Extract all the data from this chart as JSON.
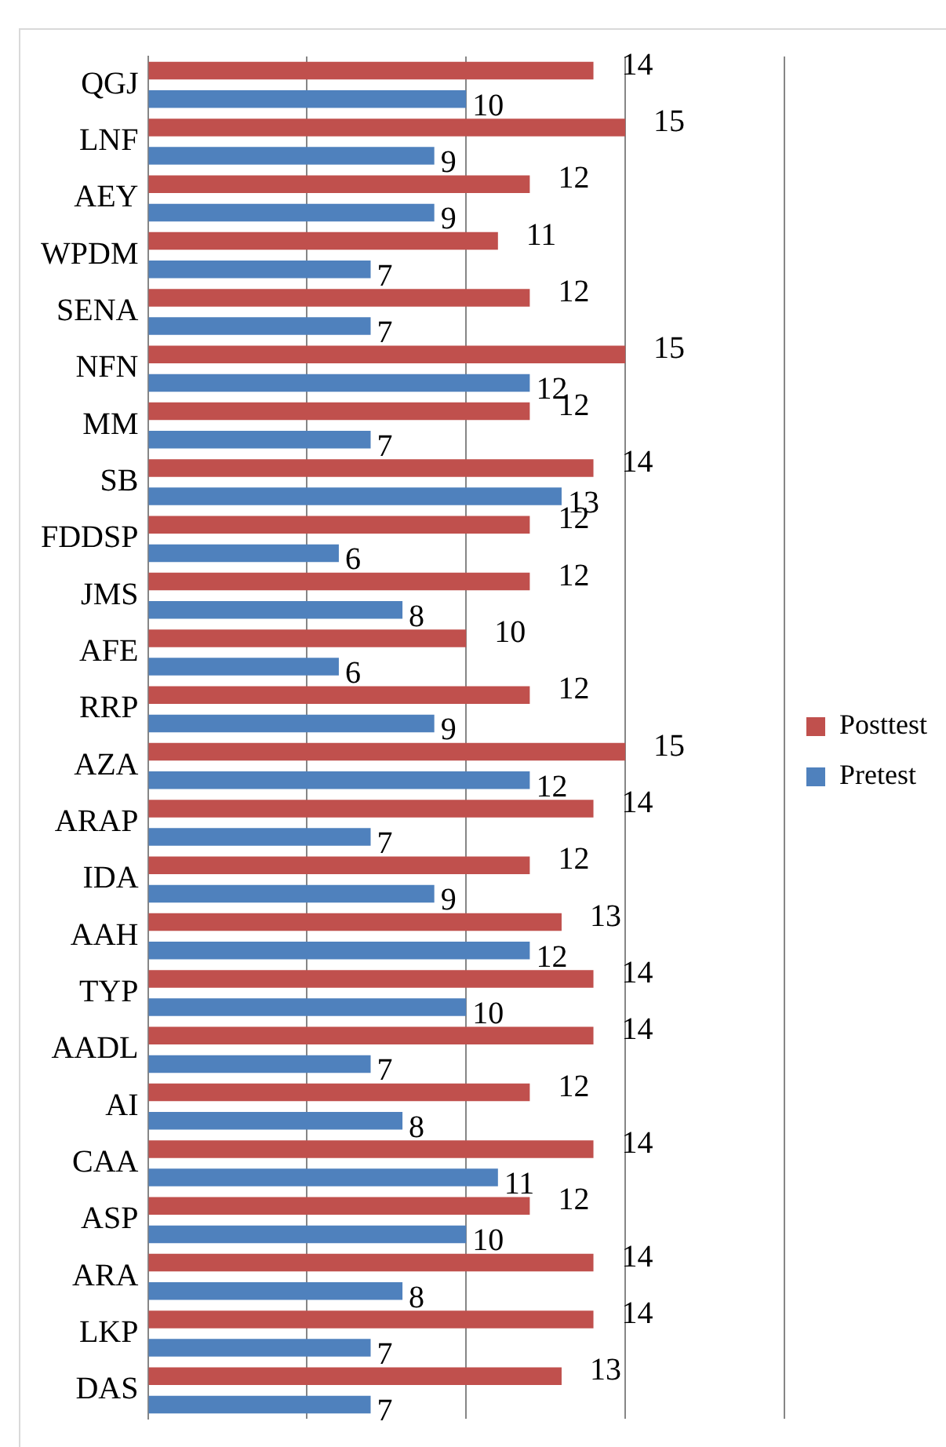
{
  "chart_data": {
    "type": "bar",
    "orientation": "horizontal",
    "categories": [
      "QGJ",
      "LNF",
      "AEY",
      "WPDM",
      "SENA",
      "NFN",
      "MM",
      "SB",
      "FDDSP",
      "JMS",
      "AFE",
      "RRP",
      "AZA",
      "ARAP",
      "IDA",
      "AAH",
      "TYP",
      "AADL",
      "AI",
      "CAA",
      "ASP",
      "ARA",
      "LKP",
      "DAS"
    ],
    "series": [
      {
        "name": "Posttest",
        "color": "#c0504d",
        "values": [
          14,
          15,
          12,
          11,
          12,
          15,
          12,
          14,
          12,
          12,
          10,
          12,
          15,
          14,
          12,
          13,
          14,
          14,
          12,
          14,
          12,
          14,
          14,
          13
        ]
      },
      {
        "name": "Pretest",
        "color": "#4f81bd",
        "values": [
          10,
          9,
          9,
          7,
          7,
          12,
          7,
          13,
          6,
          8,
          6,
          9,
          12,
          7,
          9,
          12,
          10,
          7,
          8,
          11,
          10,
          8,
          7,
          7
        ]
      }
    ],
    "xlim": [
      0,
      20
    ],
    "xticks": [
      {
        "value": 0,
        "label": null
      },
      {
        "value": 5,
        "label": null
      },
      {
        "value": 10,
        "label": null
      },
      {
        "value": 15,
        "label": null
      },
      {
        "value": 20,
        "label": null
      }
    ],
    "tick_labels": "y",
    "grid": "x",
    "legend": "right",
    "data_labels": true
  }
}
